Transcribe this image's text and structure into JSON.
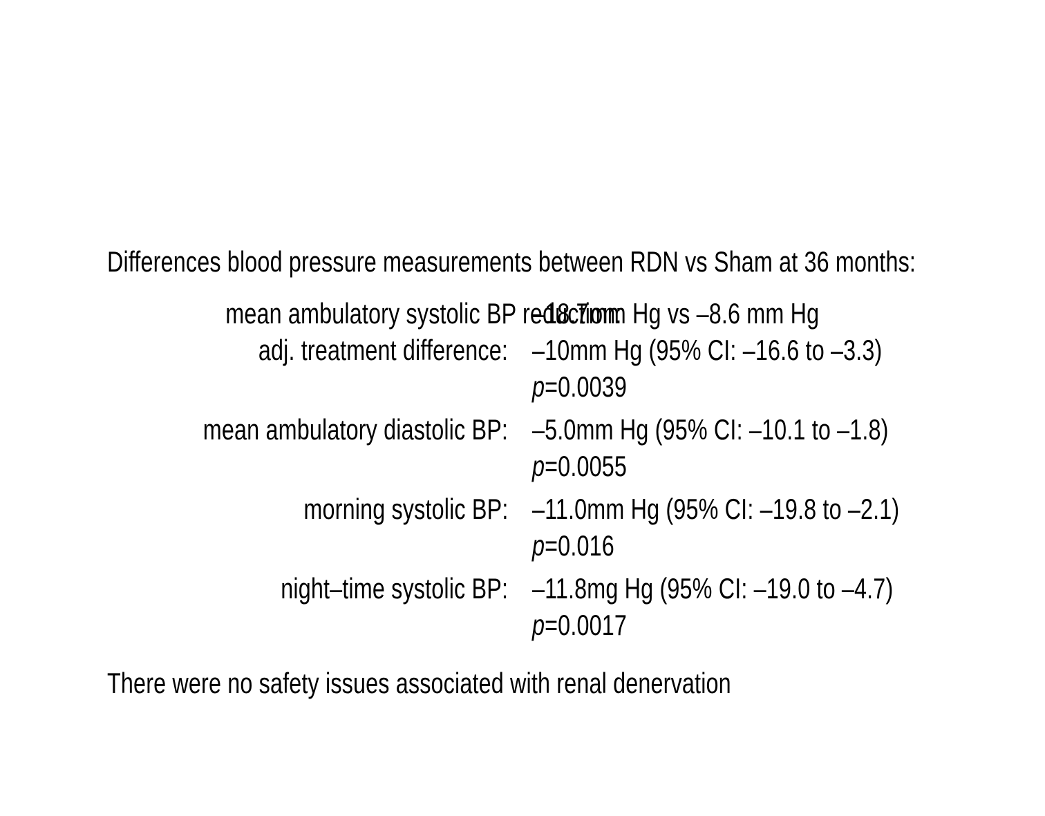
{
  "colors": {
    "background": "#ffffff",
    "text": "#000000"
  },
  "title": "Differences blood pressure measurements between RDN vs Sham at 36 months:",
  "table": {
    "groups": [
      {
        "rows": [
          {
            "label": "mean ambulatory systolic BP reduction:",
            "value": "–18.7mm Hg vs –8.6 mm Hg"
          },
          {
            "label": "adj. treatment difference:",
            "value": "–10mm Hg (95% CI: –16.6 to –3.3)"
          }
        ],
        "p_symbol": "p",
        "p_value": "=0.0039"
      },
      {
        "rows": [
          {
            "label": "mean ambulatory diastolic BP:",
            "value": "–5.0mm Hg (95% CI: –10.1 to –1.8)"
          }
        ],
        "p_symbol": "p",
        "p_value": "=0.0055"
      },
      {
        "rows": [
          {
            "label": "morning systolic BP:",
            "value": "–11.0mm Hg (95% CI: –19.8 to –2.1)"
          }
        ],
        "p_symbol": "p",
        "p_value": "=0.016"
      },
      {
        "rows": [
          {
            "label": "night–time systolic BP:",
            "value": "–11.8mg Hg (95% CI: –19.0 to –4.7)"
          }
        ],
        "p_symbol": "p",
        "p_value": "=0.0017"
      }
    ]
  },
  "footer": "There were no safety issues associated with renal denervation"
}
